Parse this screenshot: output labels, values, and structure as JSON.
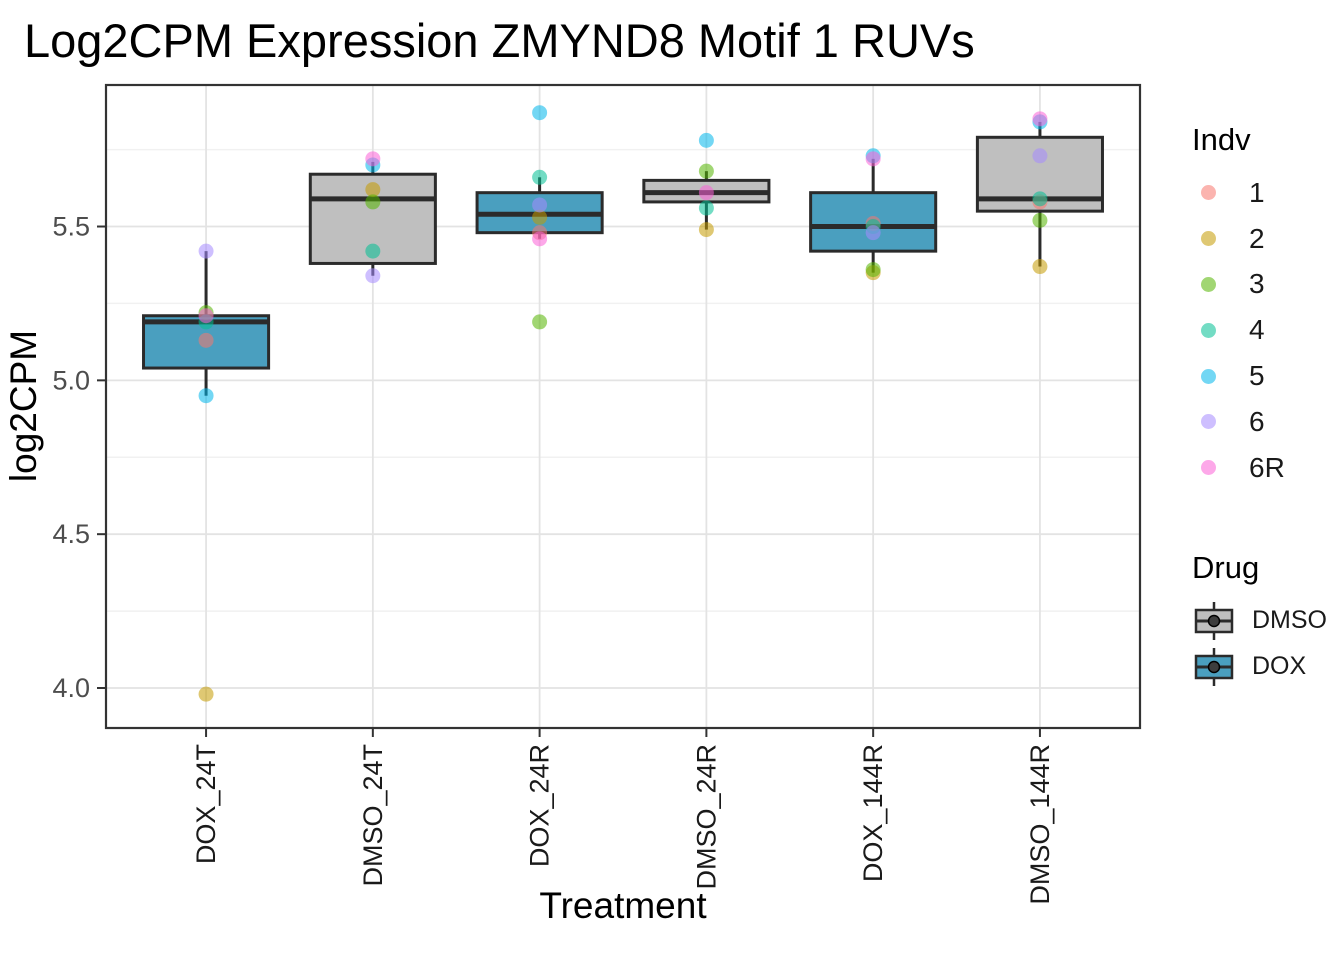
{
  "title": "Log2CPM Expression ZMYND8 Motif 1 RUVs",
  "axes": {
    "x_title": "Treatment",
    "y_title": "log2CPM"
  },
  "legend": {
    "indv_title": "Indv",
    "indv_items": [
      "1",
      "2",
      "3",
      "4",
      "5",
      "6",
      "6R"
    ],
    "drug_title": "Drug",
    "drug_items": [
      "DMSO",
      "DOX"
    ]
  },
  "chart_data": {
    "type": "boxplot",
    "title": "Log2CPM Expression ZMYND8 Motif 1 RUVs",
    "xlabel": "Treatment",
    "ylabel": "log2CPM",
    "ylim": [
      3.87,
      5.96
    ],
    "yticks": [
      "4.0",
      "4.5",
      "5.0",
      "5.5"
    ],
    "yminor": [
      4.25,
      4.75,
      5.25,
      5.75
    ],
    "categories": [
      "DOX_24T",
      "DMSO_24T",
      "DOX_24R",
      "DMSO_24R",
      "DOX_144R",
      "DMSO_144R"
    ],
    "grid": true,
    "legend_position": "right",
    "point_alpha": 0.55,
    "indv_colors": {
      "1": "#F8766D",
      "2": "#C49A00",
      "3": "#53B400",
      "4": "#00C094",
      "5": "#00B6EB",
      "6": "#A58AFF",
      "6R": "#FB61D7"
    },
    "drug_colors": {
      "DMSO": "#BFBFBF",
      "DOX": "#4A9FBF"
    },
    "groups": [
      {
        "treatment": "DOX_24T",
        "drug": "DOX",
        "whisker_low": 4.95,
        "q1": 5.04,
        "median": 5.19,
        "q3": 5.21,
        "whisker_high": 5.42,
        "points": [
          {
            "indv": "1",
            "value": 5.13
          },
          {
            "indv": "2",
            "value": 3.98
          },
          {
            "indv": "3",
            "value": 5.22
          },
          {
            "indv": "4",
            "value": 5.19
          },
          {
            "indv": "5",
            "value": 4.95
          },
          {
            "indv": "6",
            "value": 5.42
          },
          {
            "indv": "6R",
            "value": 5.21
          }
        ]
      },
      {
        "treatment": "DMSO_24T",
        "drug": "DMSO",
        "whisker_low": 5.34,
        "q1": 5.38,
        "median": 5.59,
        "q3": 5.67,
        "whisker_high": 5.71,
        "points": [
          {
            "indv": "2",
            "value": 5.62
          },
          {
            "indv": "3",
            "value": 5.58
          },
          {
            "indv": "4",
            "value": 5.42
          },
          {
            "indv": "5",
            "value": 5.7
          },
          {
            "indv": "6",
            "value": 5.34
          },
          {
            "indv": "6R",
            "value": 5.72
          }
        ]
      },
      {
        "treatment": "DOX_24R",
        "drug": "DOX",
        "whisker_low": 5.46,
        "q1": 5.48,
        "median": 5.54,
        "q3": 5.61,
        "whisker_high": 5.66,
        "points": [
          {
            "indv": "1",
            "value": 5.48
          },
          {
            "indv": "2",
            "value": 5.53
          },
          {
            "indv": "3",
            "value": 5.19
          },
          {
            "indv": "4",
            "value": 5.66
          },
          {
            "indv": "5",
            "value": 5.87
          },
          {
            "indv": "6",
            "value": 5.57
          },
          {
            "indv": "6R",
            "value": 5.46
          }
        ]
      },
      {
        "treatment": "DMSO_24R",
        "drug": "DMSO",
        "whisker_low": 5.49,
        "q1": 5.58,
        "median": 5.61,
        "q3": 5.65,
        "whisker_high": 5.68,
        "points": [
          {
            "indv": "2",
            "value": 5.49
          },
          {
            "indv": "3",
            "value": 5.68
          },
          {
            "indv": "4",
            "value": 5.56
          },
          {
            "indv": "5",
            "value": 5.78
          },
          {
            "indv": "6R",
            "value": 5.61
          }
        ]
      },
      {
        "treatment": "DOX_144R",
        "drug": "DOX",
        "whisker_low": 5.35,
        "q1": 5.42,
        "median": 5.5,
        "q3": 5.61,
        "whisker_high": 5.72,
        "points": [
          {
            "indv": "1",
            "value": 5.51
          },
          {
            "indv": "2",
            "value": 5.35
          },
          {
            "indv": "3",
            "value": 5.36
          },
          {
            "indv": "4",
            "value": 5.5
          },
          {
            "indv": "5",
            "value": 5.73
          },
          {
            "indv": "6",
            "value": 5.48
          },
          {
            "indv": "6R",
            "value": 5.72
          }
        ]
      },
      {
        "treatment": "DMSO_144R",
        "drug": "DMSO",
        "whisker_low": 5.37,
        "q1": 5.55,
        "median": 5.59,
        "q3": 5.79,
        "whisker_high": 5.84,
        "points": [
          {
            "indv": "1",
            "value": 5.58
          },
          {
            "indv": "2",
            "value": 5.37
          },
          {
            "indv": "3",
            "value": 5.52
          },
          {
            "indv": "4",
            "value": 5.59
          },
          {
            "indv": "5",
            "value": 5.84
          },
          {
            "indv": "6",
            "value": 5.73
          },
          {
            "indv": "6R",
            "value": 5.85
          }
        ]
      }
    ]
  }
}
